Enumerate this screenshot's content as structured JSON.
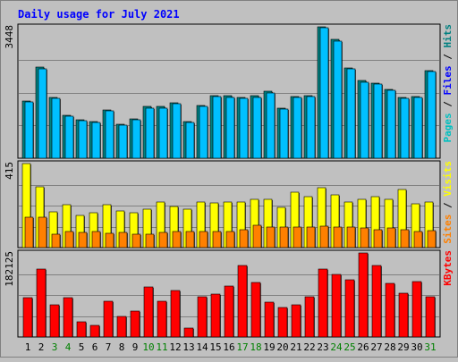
{
  "chart_data": {
    "type": "bar",
    "title": "Daily usage for July 2021",
    "categories": [
      "1",
      "2",
      "3",
      "4",
      "5",
      "6",
      "7",
      "8",
      "9",
      "10",
      "11",
      "12",
      "13",
      "14",
      "15",
      "16",
      "17",
      "18",
      "19",
      "20",
      "21",
      "22",
      "23",
      "24",
      "25",
      "26",
      "27",
      "28",
      "29",
      "30",
      "31"
    ],
    "weekend_days": [
      "3",
      "4",
      "10",
      "11",
      "17",
      "18",
      "24",
      "25",
      "31"
    ],
    "panels": [
      {
        "id": "pages-files-hits",
        "max_label": "3448",
        "ylim": [
          0,
          3448
        ],
        "grid": true,
        "axis_legend": [
          {
            "text": "Pages",
            "color": "#00c0c0"
          },
          {
            "text": " / ",
            "color": "#000000"
          },
          {
            "text": "Files",
            "color": "#0000ff"
          },
          {
            "text": " / ",
            "color": "#000000"
          },
          {
            "text": "Hits",
            "color": "#008080"
          }
        ],
        "series": [
          {
            "name": "Hits",
            "color": "#008080",
            "values": [
              1510,
              2400,
              1600,
              1120,
              1000,
              950,
              1270,
              880,
              1030,
              1350,
              1350,
              1460,
              960,
              1380,
              1650,
              1640,
              1600,
              1640,
              1750,
              1320,
              1630,
              1650,
              3448,
              3110,
              2370,
              2030,
              1980,
              1810,
              1600,
              1630,
              2300
            ]
          },
          {
            "name": "Files",
            "color": "#00c0ff",
            "values": [
              1470,
              2350,
              1570,
              1100,
              980,
              930,
              1240,
              860,
              1000,
              1320,
              1320,
              1420,
              930,
              1350,
              1610,
              1600,
              1560,
              1600,
              1710,
              1290,
              1590,
              1610,
              3420,
              3080,
              2340,
              2000,
              1950,
              1780,
              1570,
              1600,
              2270
            ]
          }
        ]
      },
      {
        "id": "visits-sites",
        "max_label": "415",
        "ylim": [
          0,
          415
        ],
        "grid": true,
        "axis_legend": [
          {
            "text": "Sites",
            "color": "#ff8000"
          },
          {
            "text": " / ",
            "color": "#000000"
          },
          {
            "text": "Visits",
            "color": "#ffff00"
          }
        ],
        "series": [
          {
            "name": "Visits",
            "color": "#ffff00",
            "values": [
              415,
              300,
              175,
              210,
              160,
              170,
              210,
              180,
              170,
              190,
              225,
              205,
              190,
              225,
              220,
              225,
              225,
              240,
              240,
              200,
              275,
              250,
              295,
              260,
              225,
              240,
              250,
              240,
              285,
              215,
              225
            ]
          },
          {
            "name": "Sites",
            "color": "#ff8000",
            "values": [
              150,
              150,
              65,
              80,
              75,
              80,
              70,
              75,
              65,
              65,
              75,
              80,
              80,
              80,
              80,
              80,
              90,
              110,
              100,
              100,
              100,
              100,
              105,
              100,
              100,
              95,
              90,
              95,
              90,
              80,
              85
            ]
          }
        ]
      },
      {
        "id": "kbytes",
        "max_label": "182125",
        "ylim": [
          0,
          182125
        ],
        "grid": true,
        "axis_legend": [
          {
            "text": "KBytes",
            "color": "#ff0000"
          }
        ],
        "series": [
          {
            "name": "KBytes",
            "color": "#ff0000",
            "values": [
              85000,
              148000,
              70000,
              86000,
              32000,
              25000,
              77000,
              44000,
              56000,
              108000,
              77000,
              100000,
              20000,
              88000,
              93000,
              110000,
              155000,
              119000,
              75000,
              63000,
              70000,
              88000,
              148000,
              136000,
              124000,
              182125,
              155000,
              116000,
              95000,
              121000,
              88000
            ]
          }
        ]
      }
    ]
  }
}
